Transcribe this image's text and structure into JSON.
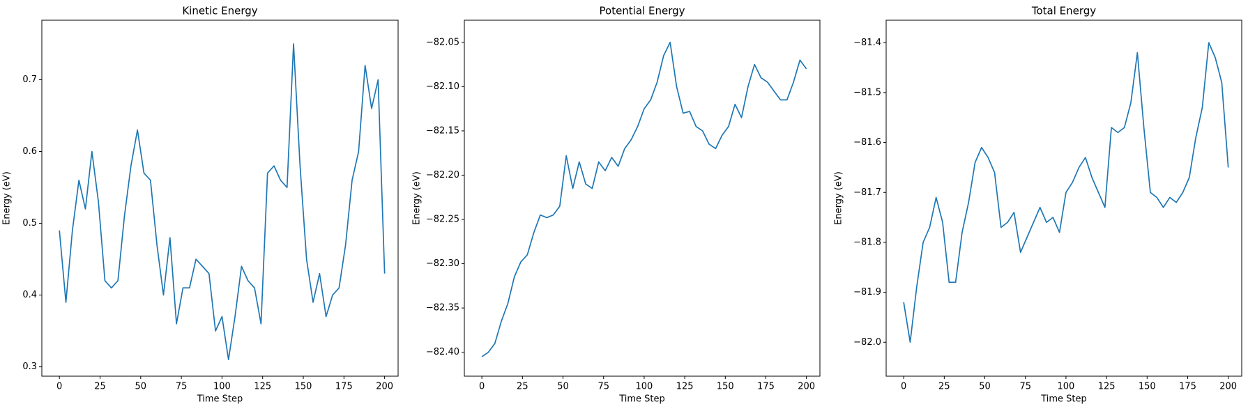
{
  "chart_data": [
    {
      "type": "line",
      "title": "Kinetic Energy",
      "x_label": "Time Step",
      "y_label": "Energy (eV)",
      "color": "#1f77b4",
      "x": [
        0,
        4,
        8,
        12,
        16,
        20,
        24,
        28,
        32,
        36,
        40,
        44,
        48,
        52,
        56,
        60,
        64,
        68,
        72,
        76,
        80,
        84,
        88,
        92,
        96,
        100,
        104,
        108,
        112,
        116,
        120,
        124,
        128,
        132,
        136,
        140,
        144,
        148,
        152,
        156,
        160,
        164,
        168,
        172,
        176,
        180,
        184,
        188,
        192,
        196,
        200
      ],
      "values": [
        0.49,
        0.39,
        0.49,
        0.56,
        0.52,
        0.6,
        0.53,
        0.42,
        0.41,
        0.42,
        0.51,
        0.58,
        0.63,
        0.57,
        0.56,
        0.47,
        0.4,
        0.48,
        0.36,
        0.41,
        0.41,
        0.45,
        0.44,
        0.43,
        0.35,
        0.37,
        0.31,
        0.37,
        0.44,
        0.42,
        0.41,
        0.36,
        0.57,
        0.58,
        0.56,
        0.55,
        0.75,
        0.58,
        0.45,
        0.39,
        0.43,
        0.37,
        0.4,
        0.41,
        0.47,
        0.56,
        0.6,
        0.72,
        0.66,
        0.7,
        0.43
      ],
      "xlim": [
        -10.8,
        208.3
      ],
      "xticks": [
        0,
        25,
        50,
        75,
        100,
        125,
        150,
        175,
        200
      ],
      "ylim": [
        0.287,
        0.783
      ],
      "yticks": [
        0.3,
        0.4,
        0.5,
        0.6,
        0.7
      ]
    },
    {
      "type": "line",
      "title": "Potential Energy",
      "x_label": "Time Step",
      "y_label": "Energy (eV)",
      "color": "#1f77b4",
      "x": [
        0,
        4,
        8,
        12,
        16,
        20,
        24,
        28,
        32,
        36,
        40,
        44,
        48,
        52,
        56,
        60,
        64,
        68,
        72,
        76,
        80,
        84,
        88,
        92,
        96,
        100,
        104,
        108,
        112,
        116,
        120,
        124,
        128,
        132,
        136,
        140,
        144,
        148,
        152,
        156,
        160,
        164,
        168,
        172,
        176,
        180,
        184,
        188,
        192,
        196,
        200
      ],
      "values": [
        -82.405,
        -82.4,
        -82.39,
        -82.365,
        -82.345,
        -82.315,
        -82.298,
        -82.29,
        -82.265,
        -82.245,
        -82.248,
        -82.245,
        -82.235,
        -82.178,
        -82.215,
        -82.185,
        -82.21,
        -82.215,
        -82.185,
        -82.195,
        -82.18,
        -82.19,
        -82.17,
        -82.16,
        -82.145,
        -82.125,
        -82.115,
        -82.095,
        -82.065,
        -82.05,
        -82.1,
        -82.13,
        -82.128,
        -82.145,
        -82.15,
        -82.165,
        -82.17,
        -82.155,
        -82.145,
        -82.12,
        -82.135,
        -82.1,
        -82.075,
        -82.09,
        -82.095,
        -82.105,
        -82.115,
        -82.115,
        -82.095,
        -82.07,
        -82.08
      ],
      "xlim": [
        -10.8,
        208.3
      ],
      "xticks": [
        0,
        25,
        50,
        75,
        100,
        125,
        150,
        175,
        200
      ],
      "ylim": [
        -82.427,
        -82.025
      ],
      "yticks": [
        {
          "value": -82.4,
          "label": "−82.40"
        },
        {
          "value": -82.35,
          "label": "−82.35"
        },
        {
          "value": -82.3,
          "label": "−82.30"
        },
        {
          "value": -82.25,
          "label": "−82.25"
        },
        {
          "value": -82.2,
          "label": "−82.20"
        },
        {
          "value": -82.15,
          "label": "−82.15"
        },
        {
          "value": -82.1,
          "label": "−82.10"
        },
        {
          "value": -82.05,
          "label": "−82.05"
        }
      ]
    },
    {
      "type": "line",
      "title": "Total Energy",
      "x_label": "Time Step",
      "y_label": "Energy (eV)",
      "color": "#1f77b4",
      "x": [
        0,
        4,
        8,
        12,
        16,
        20,
        24,
        28,
        32,
        36,
        40,
        44,
        48,
        52,
        56,
        60,
        64,
        68,
        72,
        76,
        80,
        84,
        88,
        92,
        96,
        100,
        104,
        108,
        112,
        116,
        120,
        124,
        128,
        132,
        136,
        140,
        144,
        148,
        152,
        156,
        160,
        164,
        168,
        172,
        176,
        180,
        184,
        188,
        192,
        196,
        200
      ],
      "values": [
        -81.92,
        -82.0,
        -81.89,
        -81.8,
        -81.77,
        -81.71,
        -81.76,
        -81.88,
        -81.88,
        -81.78,
        -81.72,
        -81.64,
        -81.61,
        -81.63,
        -81.66,
        -81.77,
        -81.76,
        -81.74,
        -81.82,
        -81.79,
        -81.76,
        -81.73,
        -81.76,
        -81.75,
        -81.78,
        -81.7,
        -81.68,
        -81.65,
        -81.63,
        -81.67,
        -81.7,
        -81.73,
        -81.57,
        -81.58,
        -81.57,
        -81.52,
        -81.42,
        -81.57,
        -81.7,
        -81.71,
        -81.73,
        -81.71,
        -81.72,
        -81.7,
        -81.67,
        -81.59,
        -81.53,
        -81.4,
        -81.43,
        -81.48,
        -81.65
      ],
      "xlim": [
        -10.8,
        208.3
      ],
      "xticks": [
        0,
        25,
        50,
        75,
        100,
        125,
        150,
        175,
        200
      ],
      "ylim": [
        -82.068,
        -81.355
      ],
      "yticks": [
        {
          "value": -82.0,
          "label": "−82.0"
        },
        {
          "value": -81.9,
          "label": "−81.9"
        },
        {
          "value": -81.8,
          "label": "−81.8"
        },
        {
          "value": -81.7,
          "label": "−81.7"
        },
        {
          "value": -81.6,
          "label": "−81.6"
        },
        {
          "value": -81.5,
          "label": "−81.5"
        },
        {
          "value": -81.4,
          "label": "−81.4"
        }
      ]
    }
  ]
}
